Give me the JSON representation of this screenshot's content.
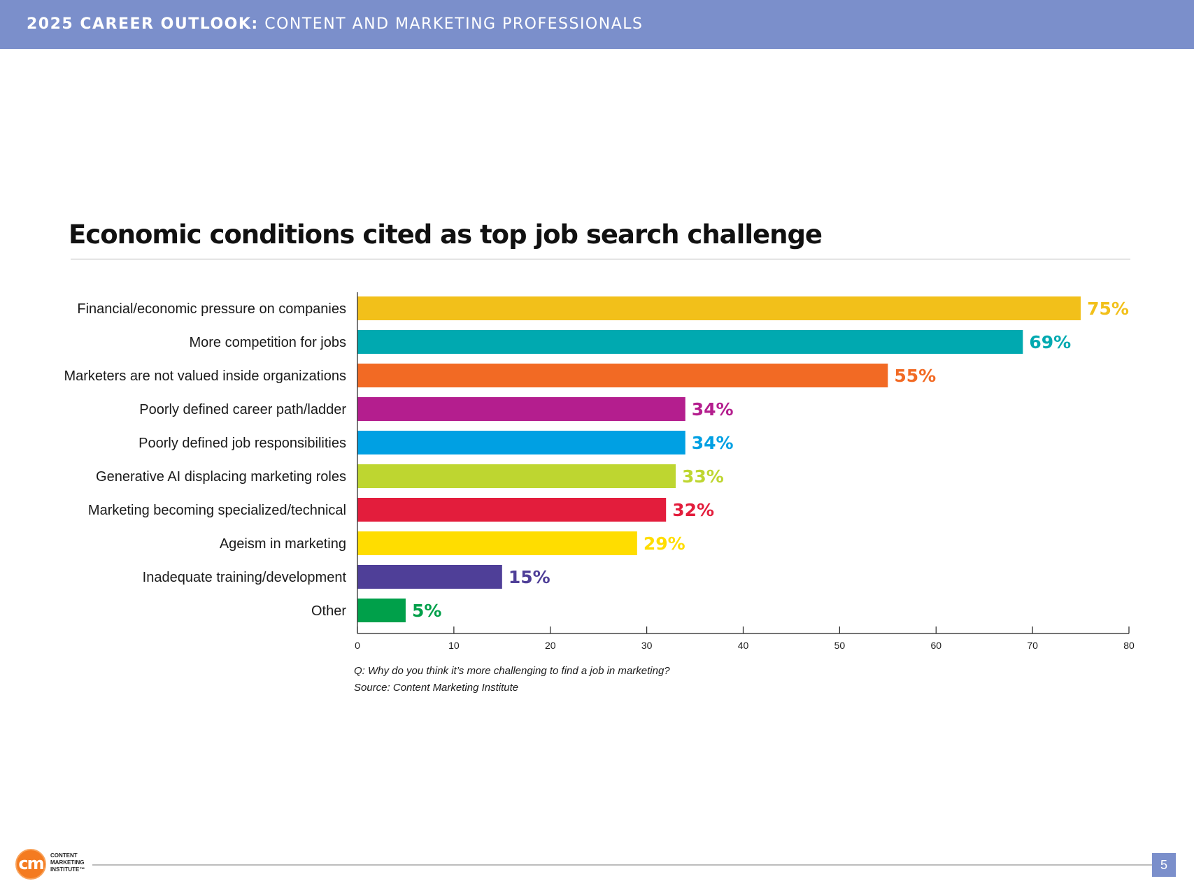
{
  "header": {
    "title_strong": "2025 CAREER OUTLOOK:",
    "title_light": "CONTENT AND MARKETING PROFESSIONALS"
  },
  "chart_data": {
    "type": "bar",
    "orientation": "horizontal",
    "title": "Economic conditions cited as top job search challenge",
    "categories": [
      "Financial/economic pressure on companies",
      "More competition for jobs",
      "Marketers are not valued inside organizations",
      "Poorly defined career path/ladder",
      "Poorly defined job responsibilities",
      "Generative AI displacing marketing roles",
      "Marketing becoming specialized/technical",
      "Ageism in marketing",
      "Inadequate training/development",
      "Other"
    ],
    "values": [
      75,
      69,
      55,
      34,
      34,
      33,
      32,
      29,
      15,
      5
    ],
    "value_labels": [
      "75%",
      "69%",
      "55%",
      "34%",
      "34%",
      "33%",
      "32%",
      "29%",
      "15%",
      "5%"
    ],
    "colors": [
      "#f2c01a",
      "#00a9b0",
      "#f26a24",
      "#b41e8e",
      "#00a0e3",
      "#bed630",
      "#e31d3c",
      "#ffdd00",
      "#4f3f98",
      "#00a04a"
    ],
    "xlim": [
      0,
      80
    ],
    "xticks": [
      "0",
      "10",
      "20",
      "30",
      "40",
      "50",
      "60",
      "70",
      "80"
    ],
    "grid": false,
    "legend": "none"
  },
  "notes": {
    "question": "Q: Why do you think it’s more challenging to find a job in marketing?",
    "source": "Source: Content Marketing Institute"
  },
  "logo": {
    "mark": "cm",
    "line1": "CONTENT",
    "line2": "MARKETING",
    "line3": "INSTITUTE™"
  },
  "page_number": "5"
}
